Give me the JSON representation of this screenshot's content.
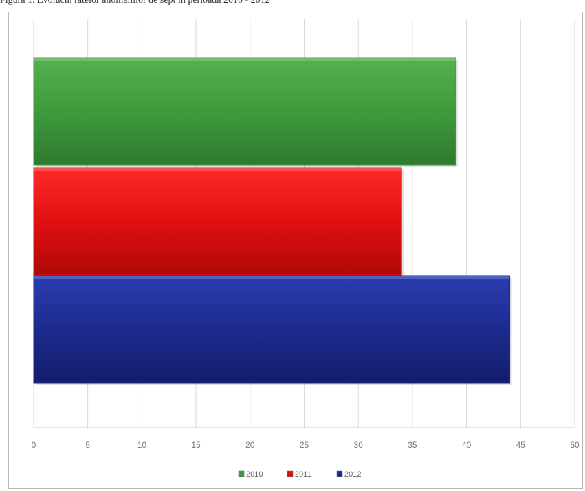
{
  "caption": "Figura 1. Evolucin ratelor anomaliilor de sept in perioada 2010 - 2012",
  "chart_data": {
    "type": "bar",
    "orientation": "horizontal",
    "title": "",
    "xlabel": "",
    "ylabel": "",
    "xlim": [
      0,
      50
    ],
    "x_ticks": [
      "0",
      "5",
      "10",
      "15",
      "20",
      "25",
      "30",
      "35",
      "40",
      "45",
      "50"
    ],
    "grid": true,
    "legend_position": "bottom",
    "series": [
      {
        "name": "2010",
        "value": 39,
        "color": "#3f9a3c"
      },
      {
        "name": "2011",
        "value": 34,
        "color": "#e01010"
      },
      {
        "name": "2012",
        "value": 44,
        "color": "#1d2a8f"
      }
    ]
  }
}
